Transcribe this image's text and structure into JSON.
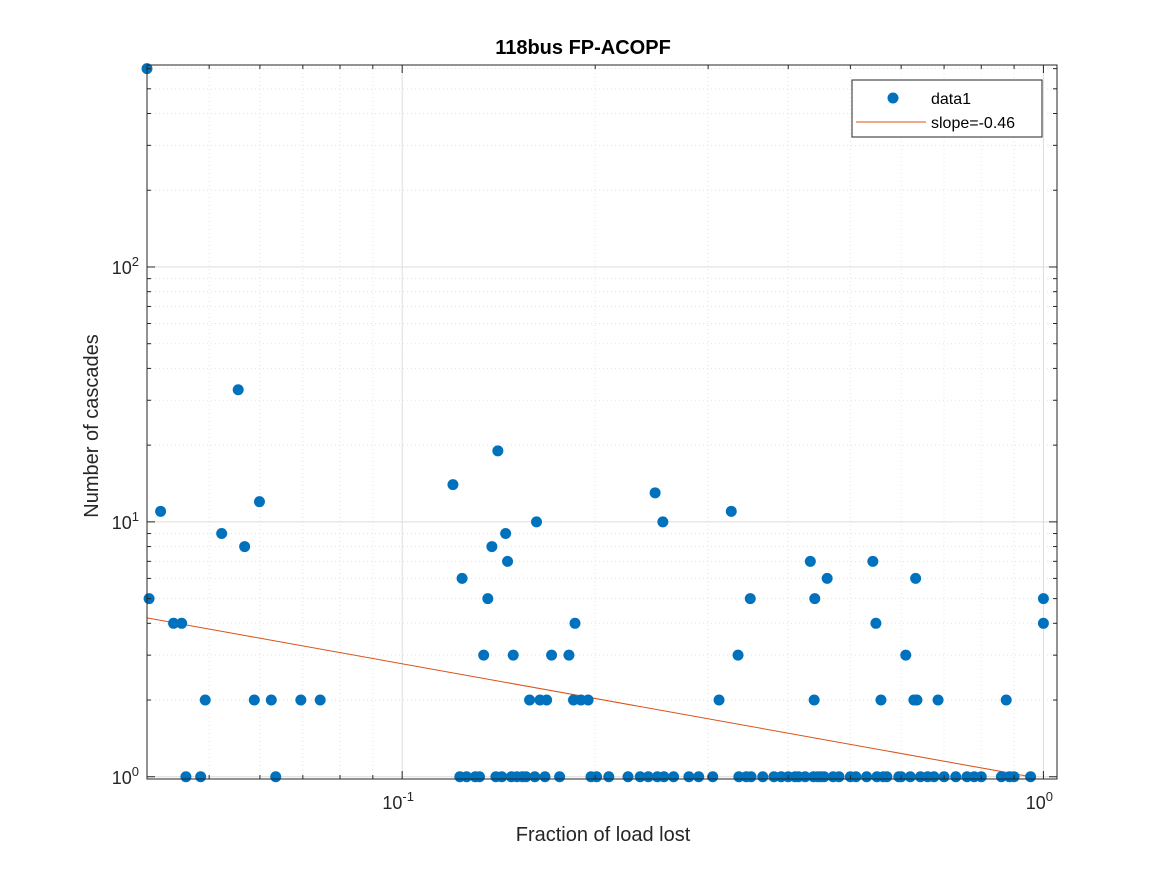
{
  "chart_data": {
    "type": "scatter",
    "title": "118bus FP-ACOPF",
    "xlabel": "Fraction of load lost",
    "ylabel": "Number of cascades",
    "x_scale": "log",
    "y_scale": "log",
    "xlim": [
      0.04,
      1.05
    ],
    "ylim": [
      0.98,
      620
    ],
    "grid": "on, with minor grid",
    "legend_location": "top-right",
    "x_ticks": [
      {
        "value": 0.1,
        "base": "10",
        "exp": "-1"
      },
      {
        "value": 1,
        "base": "10",
        "exp": "0"
      }
    ],
    "y_ticks": [
      {
        "value": 1,
        "base": "10",
        "exp": "0"
      },
      {
        "value": 10,
        "base": "10",
        "exp": "1"
      },
      {
        "value": 100,
        "base": "10",
        "exp": "2"
      }
    ],
    "series": [
      {
        "name": "data1",
        "marker": "filled circle",
        "color": "#0072BD",
        "points": [
          [
            0.04,
            600
          ],
          [
            0.0403,
            5
          ],
          [
            0.042,
            11
          ],
          [
            0.044,
            4
          ],
          [
            0.0453,
            4
          ],
          [
            0.046,
            1
          ],
          [
            0.0485,
            1
          ],
          [
            0.0493,
            2
          ],
          [
            0.0523,
            9
          ],
          [
            0.0555,
            33
          ],
          [
            0.0568,
            8
          ],
          [
            0.0588,
            2
          ],
          [
            0.0599,
            12
          ],
          [
            0.0625,
            2
          ],
          [
            0.0635,
            1
          ],
          [
            0.0695,
            2
          ],
          [
            0.0745,
            2
          ],
          [
            0.12,
            14
          ],
          [
            0.124,
            6
          ],
          [
            0.123,
            1
          ],
          [
            0.126,
            1
          ],
          [
            0.13,
            1
          ],
          [
            0.132,
            1
          ],
          [
            0.134,
            3
          ],
          [
            0.136,
            5
          ],
          [
            0.138,
            8
          ],
          [
            0.141,
            19
          ],
          [
            0.14,
            1
          ],
          [
            0.143,
            1
          ],
          [
            0.145,
            9
          ],
          [
            0.146,
            7
          ],
          [
            0.149,
            3
          ],
          [
            0.148,
            1
          ],
          [
            0.151,
            1
          ],
          [
            0.154,
            1
          ],
          [
            0.156,
            1
          ],
          [
            0.158,
            2
          ],
          [
            0.162,
            10
          ],
          [
            0.161,
            1
          ],
          [
            0.164,
            2
          ],
          [
            0.167,
            1
          ],
          [
            0.168,
            2
          ],
          [
            0.171,
            3
          ],
          [
            0.176,
            1
          ],
          [
            0.182,
            3
          ],
          [
            0.185,
            2
          ],
          [
            0.186,
            4
          ],
          [
            0.19,
            2
          ],
          [
            0.195,
            2
          ],
          [
            0.197,
            1
          ],
          [
            0.201,
            1
          ],
          [
            0.21,
            1
          ],
          [
            0.225,
            1
          ],
          [
            0.235,
            1
          ],
          [
            0.242,
            1
          ],
          [
            0.248,
            13
          ],
          [
            0.25,
            1
          ],
          [
            0.255,
            10
          ],
          [
            0.256,
            1
          ],
          [
            0.265,
            1
          ],
          [
            0.28,
            1
          ],
          [
            0.29,
            1
          ],
          [
            0.305,
            1
          ],
          [
            0.312,
            2
          ],
          [
            0.326,
            11
          ],
          [
            0.334,
            3
          ],
          [
            0.335,
            1
          ],
          [
            0.344,
            1
          ],
          [
            0.349,
            5
          ],
          [
            0.35,
            1
          ],
          [
            0.365,
            1
          ],
          [
            0.38,
            1
          ],
          [
            0.39,
            1
          ],
          [
            0.4,
            1
          ],
          [
            0.41,
            1
          ],
          [
            0.415,
            1
          ],
          [
            0.425,
            1
          ],
          [
            0.433,
            7
          ],
          [
            0.44,
            5
          ],
          [
            0.439,
            2
          ],
          [
            0.438,
            1
          ],
          [
            0.445,
            1
          ],
          [
            0.45,
            1
          ],
          [
            0.455,
            1
          ],
          [
            0.46,
            6
          ],
          [
            0.47,
            1
          ],
          [
            0.48,
            1
          ],
          [
            0.5,
            1
          ],
          [
            0.51,
            1
          ],
          [
            0.53,
            1
          ],
          [
            0.542,
            7
          ],
          [
            0.548,
            4
          ],
          [
            0.55,
            1
          ],
          [
            0.558,
            2
          ],
          [
            0.563,
            1
          ],
          [
            0.57,
            1
          ],
          [
            0.595,
            1
          ],
          [
            0.6,
            1
          ],
          [
            0.61,
            3
          ],
          [
            0.62,
            1
          ],
          [
            0.628,
            2
          ],
          [
            0.632,
            6
          ],
          [
            0.635,
            2
          ],
          [
            0.643,
            1
          ],
          [
            0.66,
            1
          ],
          [
            0.675,
            1
          ],
          [
            0.685,
            2
          ],
          [
            0.7,
            1
          ],
          [
            0.73,
            1
          ],
          [
            0.76,
            1
          ],
          [
            0.78,
            1
          ],
          [
            0.8,
            1
          ],
          [
            0.86,
            1
          ],
          [
            0.875,
            2
          ],
          [
            0.885,
            1
          ],
          [
            0.9,
            1
          ],
          [
            0.955,
            1
          ],
          [
            1.0,
            5
          ],
          [
            1.0,
            4
          ]
        ]
      },
      {
        "name": "slope=-0.46",
        "type": "line",
        "color": "#D95319",
        "slope": -0.46,
        "x": [
          0.04,
          0.955
        ],
        "y": [
          4.2,
          1.0
        ]
      }
    ]
  }
}
